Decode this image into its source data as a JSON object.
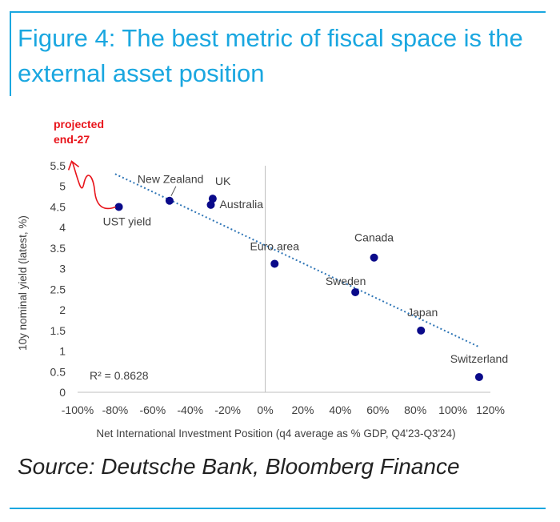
{
  "figure": {
    "title": "Figure 4: The best metric of fiscal space is the external asset position",
    "source": "Source: Deutsche Bank, Bloomberg Finance",
    "accent_color": "#1aa7e0"
  },
  "chart_data": {
    "type": "scatter",
    "xlabel": "Net International Investment Position (q4 average as % GDP, Q4'23-Q3'24)",
    "ylabel": "10y nominal yield (latest, %)",
    "xlim": [
      -100,
      120
    ],
    "ylim": [
      0,
      5.5
    ],
    "x_ticks": [
      "-100%",
      "-80%",
      "-60%",
      "-40%",
      "-20%",
      "0%",
      "20%",
      "40%",
      "60%",
      "80%",
      "100%",
      "120%"
    ],
    "y_ticks": [
      "0",
      "0.5",
      "1",
      "1.5",
      "2",
      "2.5",
      "3",
      "3.5",
      "4",
      "4.5",
      "5",
      "5.5"
    ],
    "grid": false,
    "point_color": "#0a0a8a",
    "points": [
      {
        "label": "UST yield",
        "x": -78,
        "y": 4.5
      },
      {
        "label": "New Zealand",
        "x": -51,
        "y": 4.65
      },
      {
        "label": "UK",
        "x": -28,
        "y": 4.7
      },
      {
        "label": "Australia",
        "x": -29,
        "y": 4.55
      },
      {
        "label": "Euro area",
        "x": 5,
        "y": 3.12
      },
      {
        "label": "Canada",
        "x": 58,
        "y": 3.27
      },
      {
        "label": "Sweden",
        "x": 48,
        "y": 2.43
      },
      {
        "label": "Japan",
        "x": 83,
        "y": 1.5
      },
      {
        "label": "Switzerland",
        "x": 114,
        "y": 0.37
      }
    ],
    "trendline": {
      "style": "dotted",
      "color": "#2e75b6",
      "x": [
        -80,
        114
      ],
      "y": [
        5.3,
        1.1
      ]
    },
    "annotations": {
      "r_squared": "R² = 0.8628",
      "projection": "projected\nend-27",
      "projection_color": "#e8141b"
    }
  }
}
